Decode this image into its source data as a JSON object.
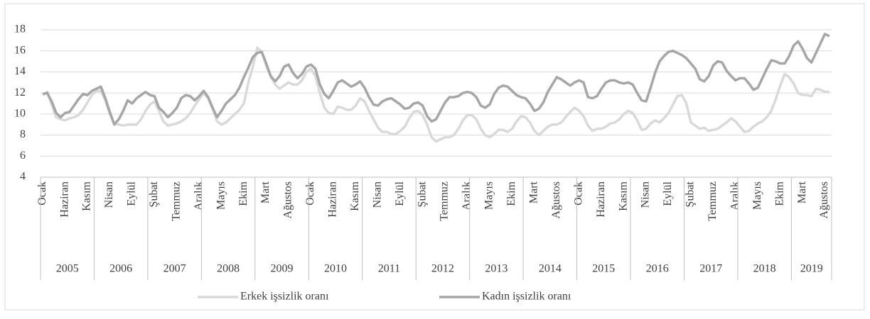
{
  "chart_data": {
    "type": "line",
    "categories": [
      "Ocak",
      null,
      null,
      null,
      null,
      "Haziran",
      null,
      null,
      null,
      null,
      "Kasım",
      null,
      null,
      null,
      null,
      "Nisan",
      null,
      null,
      null,
      null,
      "Eylül",
      null,
      null,
      null,
      null,
      "Şubat",
      null,
      null,
      null,
      null,
      "Temmuz",
      null,
      null,
      null,
      null,
      "Aralık",
      null,
      null,
      null,
      null,
      "Mayıs",
      null,
      null,
      null,
      null,
      "Ekim",
      null,
      null,
      null,
      null,
      "Mart",
      null,
      null,
      null,
      null,
      "Ağustos",
      null,
      null,
      null,
      null,
      "Ocak",
      null,
      null,
      null,
      null,
      "Haziran",
      null,
      null,
      null,
      null,
      "Kasım",
      null,
      null,
      null,
      null,
      "Nisan",
      null,
      null,
      null,
      null,
      "Eylül",
      null,
      null,
      null,
      null,
      "Şubat",
      null,
      null,
      null,
      null,
      "Temmuz",
      null,
      null,
      null,
      null,
      "Aralık",
      null,
      null,
      null,
      null,
      "Mayıs",
      null,
      null,
      null,
      null,
      "Ekim",
      null,
      null,
      null,
      null,
      "Mart",
      null,
      null,
      null,
      null,
      "Ağustos",
      null,
      null,
      null,
      null,
      "Ocak",
      null,
      null,
      null,
      null,
      "Haziran",
      null,
      null,
      null,
      null,
      "Kasım",
      null,
      null,
      null,
      null,
      "Nisan",
      null,
      null,
      null,
      null,
      "Eylül",
      null,
      null,
      null,
      null,
      "Şubat",
      null,
      null,
      null,
      null,
      "Temmuz",
      null,
      null,
      null,
      null,
      "Aralık",
      null,
      null,
      null,
      null,
      "Mayıs",
      null,
      null,
      null,
      null,
      "Ekim",
      null,
      null,
      null,
      null,
      "Mart",
      null,
      null,
      null,
      null,
      "Ağustos",
      null
    ],
    "x_groups": [
      "2005",
      "2006",
      "2007",
      "2008",
      "2009",
      "2010",
      "2011",
      "2012",
      "2013",
      "2014",
      "2015",
      "2016",
      "2017",
      "2018",
      "2019"
    ],
    "series": [
      {
        "name": "Erkek işsizlik oranı",
        "color": "#d9d9d9",
        "values": [
          11.8,
          12.1,
          10.9,
          9.7,
          9.5,
          9.4,
          9.6,
          9.7,
          9.9,
          10.4,
          11.1,
          11.8,
          12.2,
          12.2,
          11.3,
          10.0,
          9.1,
          9.0,
          8.9,
          9.0,
          9.0,
          9.0,
          9.5,
          10.3,
          10.9,
          11.2,
          10.3,
          9.3,
          8.9,
          9.0,
          9.1,
          9.3,
          9.6,
          10.1,
          10.8,
          11.4,
          12.0,
          11.5,
          10.5,
          9.3,
          9.0,
          9.2,
          9.6,
          10.0,
          10.4,
          11.0,
          13.0,
          14.5,
          16.3,
          15.9,
          14.6,
          13.6,
          12.8,
          12.4,
          12.7,
          13.0,
          12.8,
          12.8,
          13.2,
          14.0,
          14.3,
          13.6,
          12.0,
          10.6,
          10.1,
          10.0,
          10.7,
          10.6,
          10.4,
          10.4,
          10.8,
          11.5,
          11.2,
          10.3,
          9.5,
          8.7,
          8.3,
          8.3,
          8.1,
          8.1,
          8.4,
          8.8,
          9.6,
          10.2,
          10.3,
          9.9,
          9.0,
          7.8,
          7.4,
          7.6,
          7.8,
          7.8,
          8.0,
          8.6,
          9.4,
          9.9,
          9.9,
          9.5,
          8.6,
          8.0,
          7.8,
          8.1,
          8.5,
          8.5,
          8.3,
          8.6,
          9.3,
          9.8,
          9.7,
          9.2,
          8.4,
          8.0,
          8.4,
          8.8,
          9.0,
          9.0,
          9.2,
          9.7,
          10.2,
          10.6,
          10.3,
          9.8,
          8.9,
          8.4,
          8.6,
          8.6,
          8.8,
          9.1,
          9.2,
          9.5,
          10.0,
          10.3,
          10.1,
          9.4,
          8.5,
          8.6,
          9.1,
          9.4,
          9.2,
          9.6,
          10.1,
          10.9,
          11.7,
          11.8,
          11.0,
          9.2,
          8.9,
          8.6,
          8.7,
          8.4,
          8.5,
          8.6,
          8.9,
          9.2,
          9.6,
          9.3,
          8.8,
          8.3,
          8.4,
          8.8,
          9.1,
          9.3,
          9.7,
          10.3,
          11.4,
          12.7,
          13.8,
          13.5,
          12.9,
          12.0,
          11.8,
          11.8,
          11.7,
          12.4,
          12.3,
          12.1,
          12.1
        ]
      },
      {
        "name": "Kadın işsizlik oranı",
        "color": "#a6a6a6",
        "values": [
          11.9,
          12.0,
          11.2,
          10.1,
          9.7,
          10.1,
          10.2,
          10.8,
          11.4,
          11.9,
          11.8,
          12.2,
          12.4,
          12.6,
          11.5,
          10.2,
          9.0,
          9.5,
          10.3,
          11.3,
          11.0,
          11.5,
          11.8,
          12.1,
          11.8,
          11.7,
          10.6,
          10.2,
          9.7,
          10.1,
          10.6,
          11.5,
          11.8,
          11.7,
          11.3,
          11.7,
          12.2,
          11.6,
          10.6,
          9.7,
          10.3,
          11.0,
          11.4,
          11.8,
          12.5,
          13.5,
          14.4,
          15.4,
          15.8,
          15.9,
          14.8,
          13.6,
          13.1,
          13.6,
          14.5,
          14.7,
          13.9,
          13.4,
          13.8,
          14.5,
          14.7,
          14.3,
          12.8,
          11.9,
          11.5,
          12.2,
          13.0,
          13.2,
          12.9,
          12.6,
          12.8,
          13.1,
          12.5,
          11.6,
          10.9,
          10.8,
          11.2,
          11.4,
          11.5,
          11.2,
          10.9,
          10.5,
          10.6,
          11.0,
          11.1,
          10.8,
          9.8,
          9.3,
          9.5,
          10.3,
          11.1,
          11.6,
          11.6,
          11.7,
          12.0,
          12.1,
          12.0,
          11.6,
          10.8,
          10.6,
          10.9,
          11.9,
          12.5,
          12.7,
          12.6,
          12.2,
          11.8,
          11.6,
          11.5,
          11.0,
          10.3,
          10.5,
          11.1,
          12.1,
          12.8,
          13.5,
          13.3,
          13.0,
          12.7,
          13.0,
          13.2,
          13.0,
          11.6,
          11.5,
          11.7,
          12.4,
          13.0,
          13.2,
          13.2,
          13.0,
          12.9,
          13.0,
          12.8,
          12.0,
          11.3,
          11.2,
          12.5,
          13.9,
          15.0,
          15.5,
          15.9,
          16.0,
          15.8,
          15.6,
          15.3,
          14.8,
          14.3,
          13.3,
          13.1,
          13.6,
          14.6,
          15.0,
          14.9,
          14.1,
          13.6,
          13.2,
          13.4,
          13.4,
          12.9,
          12.3,
          12.5,
          13.4,
          14.3,
          15.1,
          15.0,
          14.8,
          14.8,
          15.5,
          16.5,
          16.9,
          16.2,
          15.3,
          14.9,
          15.8,
          16.7,
          17.6,
          17.4
        ]
      }
    ],
    "ylim": [
      4,
      18
    ],
    "yticks": [
      4,
      6,
      8,
      10,
      12,
      14,
      16,
      18
    ],
    "grid": true,
    "legend": "bottom"
  }
}
